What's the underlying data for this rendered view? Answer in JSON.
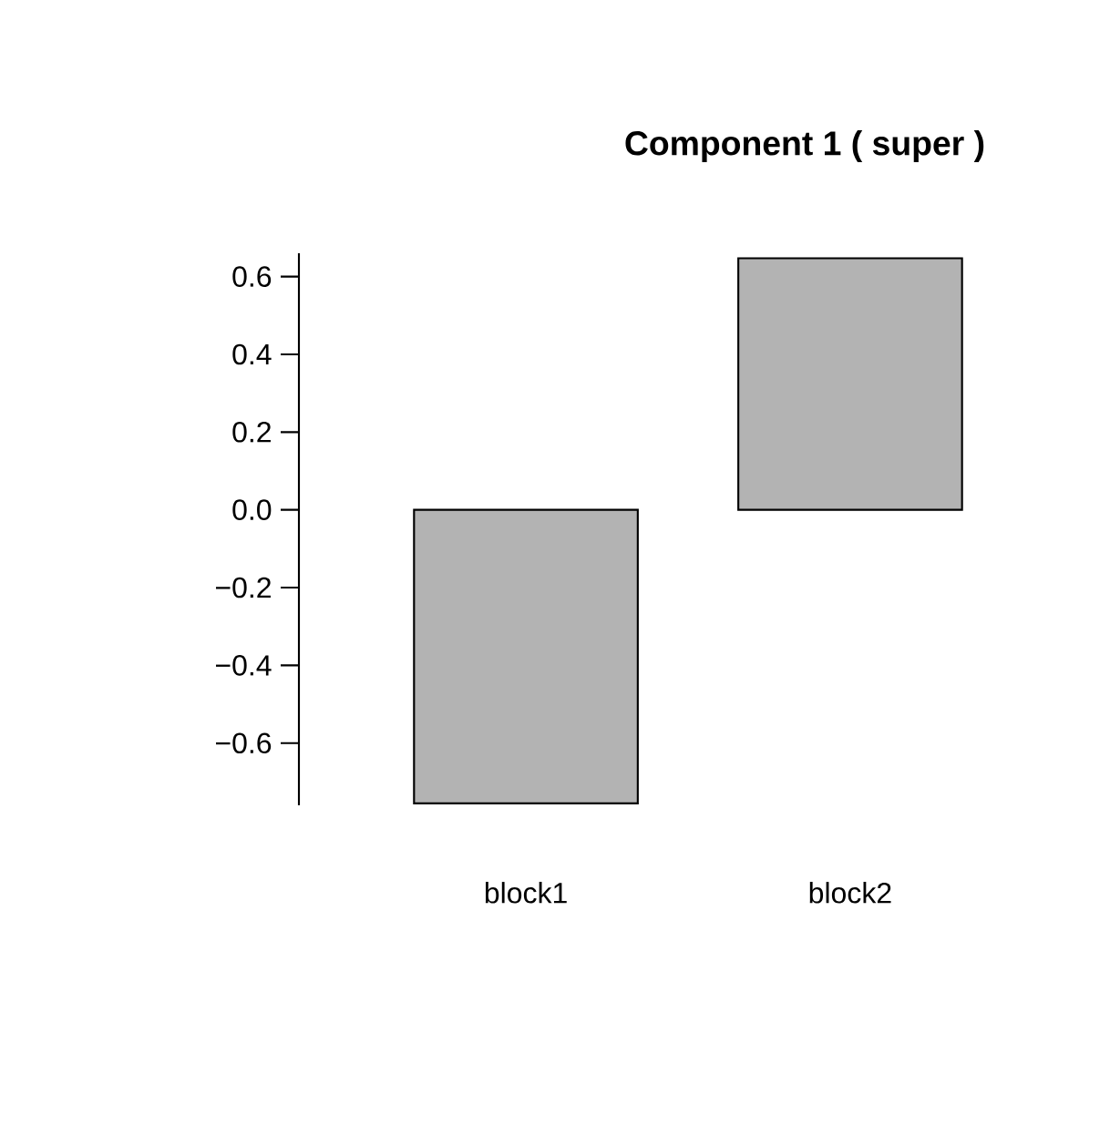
{
  "chart_data": {
    "type": "bar",
    "title": "Component 1 ( super )",
    "categories": [
      "block1",
      "block2"
    ],
    "values": [
      -0.755,
      0.647
    ],
    "color": "#b3b3b3",
    "ylim": [
      -0.76,
      0.66
    ],
    "yticks": [
      {
        "value": -0.6,
        "label": "−0.6"
      },
      {
        "value": -0.4,
        "label": "−0.4"
      },
      {
        "value": -0.2,
        "label": "−0.2"
      },
      {
        "value": 0.0,
        "label": "0.0"
      },
      {
        "value": 0.2,
        "label": "0.2"
      },
      {
        "value": 0.4,
        "label": "0.4"
      },
      {
        "value": 0.6,
        "label": "0.6"
      }
    ],
    "grid": false
  }
}
